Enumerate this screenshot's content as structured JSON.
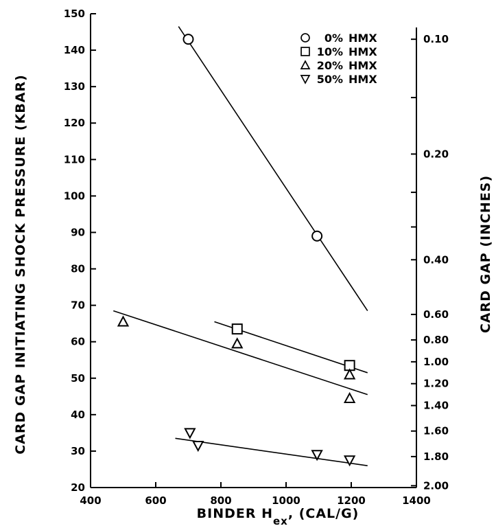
{
  "chart_data": {
    "type": "scatter",
    "xlabel": "BINDER H",
    "xlabel_sub": "ex",
    "xlabel_units": ",  (CAL/G)",
    "ylabel": "CARD GAP INITIATING SHOCK PRESSURE (KBAR)",
    "y2label": "CARD GAP (INCHES)",
    "xlim": [
      400,
      1400
    ],
    "ylim": [
      20,
      150
    ],
    "x_ticks": [
      400,
      600,
      800,
      1000,
      1200,
      1400
    ],
    "y_ticks": [
      20,
      30,
      40,
      50,
      60,
      70,
      80,
      90,
      100,
      110,
      120,
      130,
      140,
      150
    ],
    "y2_ticks": [
      {
        "label": "0.10",
        "kbar": 143
      },
      {
        "label": "0.20",
        "kbar": 111.5
      },
      {
        "label": "0.40",
        "kbar": 82.5
      },
      {
        "label": "0.60",
        "kbar": 67.5
      },
      {
        "label": "0.80",
        "kbar": 60.5
      },
      {
        "label": "1.00",
        "kbar": 54.5
      },
      {
        "label": "1.20",
        "kbar": 48.5
      },
      {
        "label": "1.40",
        "kbar": 42.5
      },
      {
        "label": "1.60",
        "kbar": 35.5
      },
      {
        "label": "1.80",
        "kbar": 28.5
      },
      {
        "label": "2.00",
        "kbar": 20.5
      }
    ],
    "y2_minor_kbar": [
      127,
      101,
      91.5
    ],
    "legend_position": "top-right",
    "series": [
      {
        "name": "0% HMX",
        "marker": "circle",
        "points": [
          {
            "x": 700,
            "y": 143
          },
          {
            "x": 1095,
            "y": 89
          }
        ],
        "fit": [
          {
            "x": 670,
            "y": 146.5
          },
          {
            "x": 1250,
            "y": 68.5
          }
        ]
      },
      {
        "name": "10% HMX",
        "marker": "square",
        "points": [
          {
            "x": 850,
            "y": 63.5
          },
          {
            "x": 1195,
            "y": 53.5
          }
        ],
        "fit": [
          {
            "x": 780,
            "y": 65.5
          },
          {
            "x": 1250,
            "y": 51.5
          }
        ]
      },
      {
        "name": "20% HMX",
        "marker": "triangle-up",
        "points": [
          {
            "x": 500,
            "y": 65.5
          },
          {
            "x": 850,
            "y": 59.5
          },
          {
            "x": 1195,
            "y": 51
          },
          {
            "x": 1195,
            "y": 44.5
          }
        ],
        "fit": [
          {
            "x": 470,
            "y": 68.5
          },
          {
            "x": 1250,
            "y": 45.5
          }
        ]
      },
      {
        "name": "50% HMX",
        "marker": "triangle-down",
        "points": [
          {
            "x": 705,
            "y": 35
          },
          {
            "x": 730,
            "y": 31.5
          },
          {
            "x": 1095,
            "y": 29
          },
          {
            "x": 1195,
            "y": 27.5
          }
        ],
        "fit": [
          {
            "x": 660,
            "y": 33.5
          },
          {
            "x": 1250,
            "y": 26
          }
        ]
      }
    ]
  }
}
